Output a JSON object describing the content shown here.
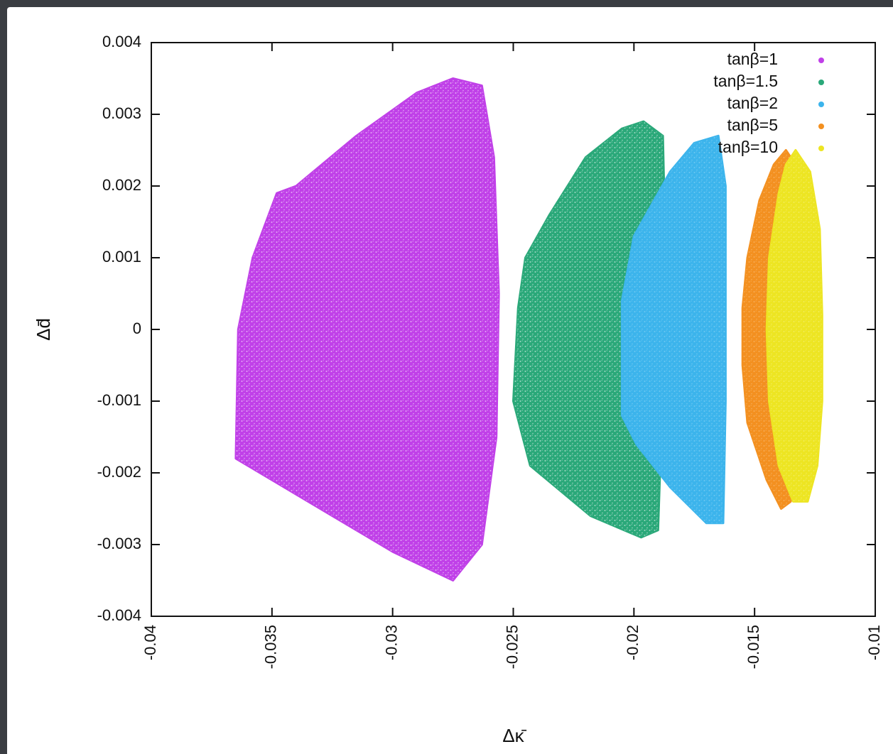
{
  "chart_data": {
    "type": "scatter",
    "xlabel": "Δκ̄",
    "ylabel": "Δd̄",
    "xlim": [
      -0.04,
      -0.01
    ],
    "ylim": [
      -0.004,
      0.004
    ],
    "x_ticks": [
      "-0.04",
      "-0.035",
      "-0.03",
      "-0.025",
      "-0.02",
      "-0.015",
      "-0.01"
    ],
    "y_ticks": [
      "0.004",
      "0.003",
      "0.002",
      "0.001",
      "0",
      "-0.001",
      "-0.002",
      "-0.003",
      "-0.004"
    ],
    "legend_position": "top-right",
    "grid": false,
    "series": [
      {
        "name": "tanβ=1",
        "color": "#c040e8",
        "outline": [
          [
            -0.0263,
            0.0034
          ],
          [
            -0.0258,
            0.0024
          ],
          [
            -0.0256,
            0.0005
          ],
          [
            -0.0257,
            -0.0015
          ],
          [
            -0.0263,
            -0.003
          ],
          [
            -0.0275,
            -0.0035
          ],
          [
            -0.03,
            -0.0031
          ],
          [
            -0.0335,
            -0.0024
          ],
          [
            -0.0365,
            -0.0018
          ],
          [
            -0.0364,
            0.0
          ],
          [
            -0.0358,
            0.001
          ],
          [
            -0.0348,
            0.0019
          ],
          [
            -0.034,
            0.002
          ],
          [
            -0.0315,
            0.0027
          ],
          [
            -0.029,
            0.0033
          ],
          [
            -0.0275,
            0.0035
          ]
        ]
      },
      {
        "name": "tanβ=1.5",
        "color": "#2aa879",
        "outline": [
          [
            -0.0196,
            0.0029
          ],
          [
            -0.0188,
            0.0027
          ],
          [
            -0.0187,
            0.0012
          ],
          [
            -0.0188,
            -0.0008
          ],
          [
            -0.019,
            -0.0028
          ],
          [
            -0.0197,
            -0.0029
          ],
          [
            -0.0218,
            -0.0026
          ],
          [
            -0.0243,
            -0.0019
          ],
          [
            -0.025,
            -0.001
          ],
          [
            -0.0248,
            0.0003
          ],
          [
            -0.0245,
            0.001
          ],
          [
            -0.0235,
            0.0016
          ],
          [
            -0.022,
            0.0024
          ],
          [
            -0.0205,
            0.0028
          ]
        ]
      },
      {
        "name": "tanβ=2",
        "color": "#3cb4ec",
        "outline": [
          [
            -0.0165,
            0.0027
          ],
          [
            -0.0162,
            0.002
          ],
          [
            -0.0162,
            -0.001
          ],
          [
            -0.0163,
            -0.0027
          ],
          [
            -0.017,
            -0.0027
          ],
          [
            -0.0185,
            -0.0022
          ],
          [
            -0.0199,
            -0.0016
          ],
          [
            -0.0205,
            -0.0012
          ],
          [
            -0.0205,
            0.0004
          ],
          [
            -0.02,
            0.0013
          ],
          [
            -0.0185,
            0.0022
          ],
          [
            -0.0175,
            0.0026
          ]
        ]
      },
      {
        "name": "tanβ=5",
        "color": "#f39020",
        "outline": [
          [
            -0.0137,
            0.0025
          ],
          [
            -0.0133,
            0.0023
          ],
          [
            -0.0134,
            -0.0005
          ],
          [
            -0.0135,
            -0.0024
          ],
          [
            -0.0139,
            -0.0025
          ],
          [
            -0.0145,
            -0.0021
          ],
          [
            -0.0153,
            -0.0013
          ],
          [
            -0.0155,
            -0.0005
          ],
          [
            -0.0155,
            0.0003
          ],
          [
            -0.0153,
            0.001
          ],
          [
            -0.0148,
            0.0018
          ],
          [
            -0.0142,
            0.0023
          ]
        ]
      },
      {
        "name": "tanβ=10",
        "color": "#ede522",
        "outline": [
          [
            -0.0133,
            0.0025
          ],
          [
            -0.0127,
            0.0022
          ],
          [
            -0.0123,
            0.0014
          ],
          [
            -0.0122,
            0.0002
          ],
          [
            -0.0122,
            -0.001
          ],
          [
            -0.0124,
            -0.0019
          ],
          [
            -0.0128,
            -0.0024
          ],
          [
            -0.0134,
            -0.0024
          ],
          [
            -0.014,
            -0.0019
          ],
          [
            -0.0144,
            -0.001
          ],
          [
            -0.0145,
            0.0
          ],
          [
            -0.0144,
            0.001
          ],
          [
            -0.014,
            0.0019
          ],
          [
            -0.0137,
            0.0023
          ]
        ]
      }
    ]
  }
}
